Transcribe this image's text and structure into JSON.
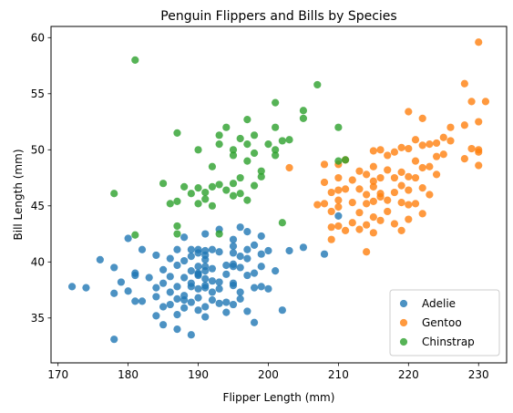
{
  "chart_data": {
    "type": "scatter",
    "title": "Penguin Flippers and Bills by Species",
    "xlabel": "Flipper Length (mm)",
    "ylabel": "Bill Length (mm)",
    "xlim": [
      169,
      234
    ],
    "ylim": [
      31,
      61
    ],
    "xticks": [
      170,
      180,
      190,
      200,
      210,
      220,
      230
    ],
    "yticks": [
      35,
      40,
      45,
      50,
      55,
      60
    ],
    "grid": false,
    "legend_position": "lower-right",
    "series": [
      {
        "name": "Adelie",
        "color": "#1f77b4",
        "points": [
          [
            172,
            37.8
          ],
          [
            174,
            37.7
          ],
          [
            176,
            40.2
          ],
          [
            178,
            39.5
          ],
          [
            178,
            37.2
          ],
          [
            178,
            33.1
          ],
          [
            179,
            38.2
          ],
          [
            180,
            37.4
          ],
          [
            180,
            42.1
          ],
          [
            181,
            39.0
          ],
          [
            181,
            38.8
          ],
          [
            181,
            36.5
          ],
          [
            182,
            41.1
          ],
          [
            182,
            36.5
          ],
          [
            183,
            38.6
          ],
          [
            184,
            35.2
          ],
          [
            184,
            36.9
          ],
          [
            184,
            40.6
          ],
          [
            184,
            37.7
          ],
          [
            185,
            38.1
          ],
          [
            185,
            36.0
          ],
          [
            185,
            39.3
          ],
          [
            185,
            34.4
          ],
          [
            186,
            37.3
          ],
          [
            186,
            38.7
          ],
          [
            186,
            40.3
          ],
          [
            186,
            36.2
          ],
          [
            187,
            39.7
          ],
          [
            187,
            34.0
          ],
          [
            187,
            41.1
          ],
          [
            187,
            37.8
          ],
          [
            187,
            36.7
          ],
          [
            187,
            35.3
          ],
          [
            188,
            40.1
          ],
          [
            188,
            35.9
          ],
          [
            188,
            38.6
          ],
          [
            188,
            36.6
          ],
          [
            188,
            42.2
          ],
          [
            188,
            37.0
          ],
          [
            189,
            37.8
          ],
          [
            189,
            39.2
          ],
          [
            189,
            41.1
          ],
          [
            189,
            40.5
          ],
          [
            189,
            33.5
          ],
          [
            189,
            38.1
          ],
          [
            189,
            36.4
          ],
          [
            190,
            38.9
          ],
          [
            190,
            39.0
          ],
          [
            190,
            37.6
          ],
          [
            190,
            41.1
          ],
          [
            190,
            39.6
          ],
          [
            190,
            35.7
          ],
          [
            190,
            40.8
          ],
          [
            190,
            36.8
          ],
          [
            190,
            38.8
          ],
          [
            191,
            39.2
          ],
          [
            191,
            37.9
          ],
          [
            191,
            40.6
          ],
          [
            191,
            36.0
          ],
          [
            191,
            42.5
          ],
          [
            191,
            37.7
          ],
          [
            191,
            38.5
          ],
          [
            191,
            35.1
          ],
          [
            191,
            39.6
          ],
          [
            191,
            41.0
          ],
          [
            191,
            40.2
          ],
          [
            192,
            37.3
          ],
          [
            192,
            36.6
          ],
          [
            192,
            38.3
          ],
          [
            192,
            41.1
          ],
          [
            192,
            39.4
          ],
          [
            193,
            36.3
          ],
          [
            193,
            38.2
          ],
          [
            193,
            40.9
          ],
          [
            193,
            37.6
          ],
          [
            193,
            42.9
          ],
          [
            194,
            39.7
          ],
          [
            194,
            36.4
          ],
          [
            194,
            35.5
          ],
          [
            194,
            38.9
          ],
          [
            195,
            39.6
          ],
          [
            195,
            41.4
          ],
          [
            195,
            37.9
          ],
          [
            195,
            40.8
          ],
          [
            195,
            36.2
          ],
          [
            195,
            42.0
          ],
          [
            195,
            38.1
          ],
          [
            195,
            39.8
          ],
          [
            196,
            39.5
          ],
          [
            196,
            43.1
          ],
          [
            196,
            37.3
          ],
          [
            196,
            40.5
          ],
          [
            196,
            36.7
          ],
          [
            197,
            41.1
          ],
          [
            197,
            38.8
          ],
          [
            197,
            40.3
          ],
          [
            197,
            35.6
          ],
          [
            197,
            42.7
          ],
          [
            198,
            39.0
          ],
          [
            198,
            37.7
          ],
          [
            198,
            41.5
          ],
          [
            198,
            34.6
          ],
          [
            199,
            40.7
          ],
          [
            199,
            37.8
          ],
          [
            199,
            39.6
          ],
          [
            199,
            42.3
          ],
          [
            200,
            37.6
          ],
          [
            200,
            41.0
          ],
          [
            201,
            39.2
          ],
          [
            202,
            35.7
          ],
          [
            203,
            41.0
          ],
          [
            205,
            41.3
          ],
          [
            208,
            40.7
          ],
          [
            210,
            44.1
          ]
        ]
      },
      {
        "name": "Gentoo",
        "color": "#ff7f0e",
        "points": [
          [
            203,
            48.4
          ],
          [
            207,
            45.1
          ],
          [
            208,
            47.1
          ],
          [
            208,
            48.7
          ],
          [
            208,
            45.2
          ],
          [
            209,
            44.5
          ],
          [
            209,
            43.1
          ],
          [
            209,
            46.2
          ],
          [
            209,
            42.0
          ],
          [
            210,
            46.4
          ],
          [
            210,
            47.5
          ],
          [
            210,
            45.5
          ],
          [
            210,
            43.2
          ],
          [
            210,
            48.7
          ],
          [
            210,
            44.9
          ],
          [
            211,
            46.5
          ],
          [
            211,
            42.8
          ],
          [
            211,
            49.1
          ],
          [
            212,
            45.3
          ],
          [
            212,
            47.3
          ],
          [
            212,
            43.5
          ],
          [
            213,
            46.5
          ],
          [
            213,
            48.1
          ],
          [
            213,
            44.4
          ],
          [
            213,
            42.9
          ],
          [
            214,
            45.2
          ],
          [
            214,
            47.8
          ],
          [
            214,
            43.3
          ],
          [
            214,
            40.9
          ],
          [
            214,
            46.0
          ],
          [
            215,
            45.4
          ],
          [
            215,
            48.5
          ],
          [
            215,
            46.7
          ],
          [
            215,
            44.0
          ],
          [
            215,
            49.9
          ],
          [
            215,
            42.6
          ],
          [
            215,
            47.2
          ],
          [
            216,
            45.8
          ],
          [
            216,
            50.0
          ],
          [
            216,
            43.7
          ],
          [
            216,
            47.5
          ],
          [
            216,
            46.1
          ],
          [
            217,
            45.5
          ],
          [
            217,
            48.2
          ],
          [
            217,
            44.5
          ],
          [
            217,
            49.5
          ],
          [
            218,
            46.2
          ],
          [
            218,
            47.5
          ],
          [
            218,
            43.4
          ],
          [
            218,
            49.8
          ],
          [
            219,
            45.3
          ],
          [
            219,
            50.2
          ],
          [
            219,
            48.0
          ],
          [
            219,
            42.8
          ],
          [
            219,
            46.8
          ],
          [
            220,
            47.6
          ],
          [
            220,
            45.1
          ],
          [
            220,
            50.1
          ],
          [
            220,
            43.8
          ],
          [
            220,
            53.4
          ],
          [
            220,
            46.4
          ],
          [
            221,
            47.5
          ],
          [
            221,
            49.0
          ],
          [
            221,
            45.2
          ],
          [
            221,
            50.9
          ],
          [
            222,
            52.8
          ],
          [
            222,
            46.6
          ],
          [
            222,
            48.4
          ],
          [
            222,
            44.3
          ],
          [
            222,
            50.4
          ],
          [
            223,
            48.5
          ],
          [
            223,
            46.0
          ],
          [
            223,
            50.5
          ],
          [
            224,
            50.6
          ],
          [
            224,
            47.8
          ],
          [
            224,
            49.4
          ],
          [
            225,
            51.1
          ],
          [
            225,
            49.6
          ],
          [
            226,
            50.8
          ],
          [
            226,
            52.0
          ],
          [
            228,
            55.9
          ],
          [
            228,
            49.2
          ],
          [
            228,
            52.2
          ],
          [
            229,
            50.1
          ],
          [
            229,
            54.3
          ],
          [
            230,
            59.6
          ],
          [
            230,
            48.6
          ],
          [
            230,
            50.0
          ],
          [
            230,
            49.8
          ],
          [
            230,
            52.5
          ],
          [
            231,
            54.3
          ]
        ]
      },
      {
        "name": "Chinstrap",
        "color": "#2ca02c",
        "points": [
          [
            178,
            46.1
          ],
          [
            181,
            58.0
          ],
          [
            181,
            42.4
          ],
          [
            185,
            47.0
          ],
          [
            186,
            45.2
          ],
          [
            187,
            51.5
          ],
          [
            187,
            42.5
          ],
          [
            187,
            45.4
          ],
          [
            187,
            43.2
          ],
          [
            188,
            46.7
          ],
          [
            189,
            46.1
          ],
          [
            190,
            50.0
          ],
          [
            190,
            46.6
          ],
          [
            190,
            45.2
          ],
          [
            191,
            46.2
          ],
          [
            191,
            45.6
          ],
          [
            192,
            46.7
          ],
          [
            192,
            48.5
          ],
          [
            192,
            45.0
          ],
          [
            193,
            51.3
          ],
          [
            193,
            46.9
          ],
          [
            193,
            50.5
          ],
          [
            193,
            42.5
          ],
          [
            194,
            52.0
          ],
          [
            194,
            46.4
          ],
          [
            195,
            50.0
          ],
          [
            195,
            49.5
          ],
          [
            195,
            47.0
          ],
          [
            195,
            45.9
          ],
          [
            196,
            51.0
          ],
          [
            196,
            47.5
          ],
          [
            196,
            46.1
          ],
          [
            197,
            52.7
          ],
          [
            197,
            50.5
          ],
          [
            197,
            49.0
          ],
          [
            197,
            45.5
          ],
          [
            198,
            51.3
          ],
          [
            198,
            49.7
          ],
          [
            198,
            46.8
          ],
          [
            199,
            48.1
          ],
          [
            199,
            47.6
          ],
          [
            200,
            50.5
          ],
          [
            201,
            50.0
          ],
          [
            201,
            52.0
          ],
          [
            201,
            54.2
          ],
          [
            201,
            49.5
          ],
          [
            202,
            43.5
          ],
          [
            202,
            50.8
          ],
          [
            203,
            50.9
          ],
          [
            205,
            52.8
          ],
          [
            205,
            53.5
          ],
          [
            207,
            55.8
          ],
          [
            210,
            52.0
          ],
          [
            210,
            49.0
          ],
          [
            211,
            49.1
          ]
        ]
      }
    ]
  }
}
